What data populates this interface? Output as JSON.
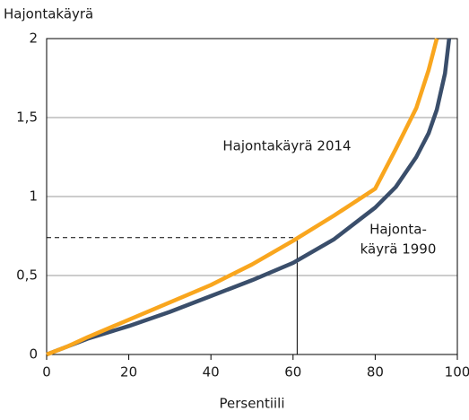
{
  "chart_data": {
    "type": "line",
    "y_axis_title": "Hajontakäyrä",
    "x_axis_title": "Persentiili",
    "xlim": [
      0,
      100
    ],
    "xticks": [
      0,
      20,
      40,
      60,
      80,
      100
    ],
    "ylim": [
      0,
      2
    ],
    "yticks": [
      0,
      {
        "value": 0.5,
        "label": "0,5"
      },
      1,
      {
        "value": 1.5,
        "label": "1,5"
      },
      2
    ],
    "grid": true,
    "series": [
      {
        "name": "Hajontakäyrä 2014",
        "color": "#f9a61e",
        "x": [
          0,
          5,
          10,
          20,
          30,
          40,
          50,
          60,
          70,
          80,
          85,
          90,
          93,
          95
        ],
        "values": [
          0,
          0.05,
          0.11,
          0.22,
          0.33,
          0.44,
          0.57,
          0.72,
          0.88,
          1.05,
          1.3,
          1.56,
          1.8,
          2
        ]
      },
      {
        "name_lines": [
          "Hajonta-",
          "käyrä 1990"
        ],
        "color": "#3a4e6b",
        "x": [
          0,
          5,
          10,
          20,
          30,
          40,
          50,
          60,
          70,
          80,
          85,
          90,
          93,
          95,
          97,
          98
        ],
        "values": [
          0,
          0.05,
          0.1,
          0.18,
          0.27,
          0.37,
          0.47,
          0.58,
          0.73,
          0.93,
          1.06,
          1.25,
          1.4,
          1.55,
          1.78,
          2
        ]
      }
    ],
    "reference_point": {
      "x": 61,
      "y": 0.74
    }
  }
}
